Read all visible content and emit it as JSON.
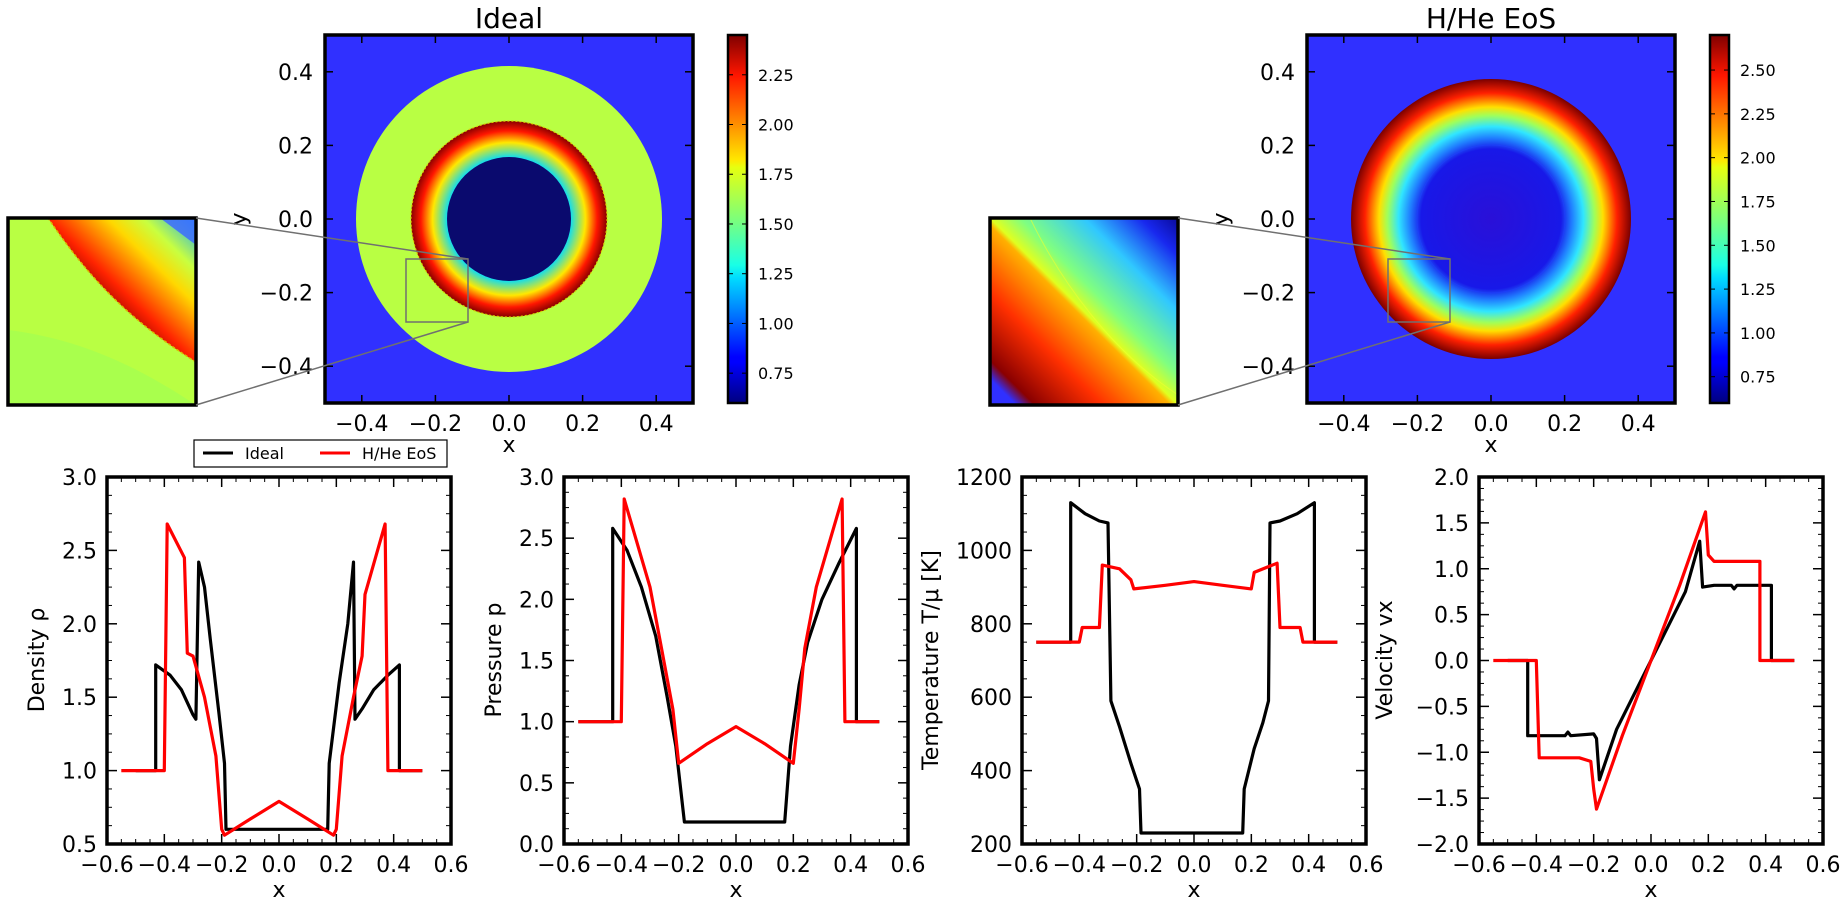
{
  "chart_data": [
    {
      "type": "heatmap",
      "title": "Ideal",
      "xlabel": "x",
      "ylabel": "y",
      "xlim": [
        -0.5,
        0.5
      ],
      "ylim": [
        -0.5,
        0.5
      ],
      "xticks": [
        "−0.4",
        "−0.2",
        "0.0",
        "0.2",
        "0.4"
      ],
      "yticks": [
        "0.4",
        "0.2",
        "0.0",
        "−0.2",
        "−0.4"
      ],
      "colorbar": {
        "range": [
          0.6,
          2.45
        ],
        "ticks": [
          "2.25",
          "2.00",
          "1.75",
          "1.50",
          "1.25",
          "1.00",
          "0.75"
        ]
      },
      "inset_region": {
        "x": [
          -0.28,
          -0.11
        ],
        "y": [
          -0.28,
          -0.11
        ]
      }
    },
    {
      "type": "heatmap",
      "title": "H/He EoS",
      "xlabel": "x",
      "ylabel": "y",
      "xlim": [
        -0.5,
        0.5
      ],
      "ylim": [
        -0.5,
        0.5
      ],
      "xticks": [
        "−0.4",
        "−0.2",
        "0.0",
        "0.2",
        "0.4"
      ],
      "yticks": [
        "0.4",
        "0.2",
        "0.0",
        "−0.2",
        "−0.4"
      ],
      "colorbar": {
        "range": [
          0.6,
          2.7
        ],
        "ticks": [
          "2.50",
          "2.25",
          "2.00",
          "1.75",
          "1.50",
          "1.25",
          "1.00",
          "0.75"
        ]
      },
      "inset_region": {
        "x": [
          -0.28,
          -0.11
        ],
        "y": [
          -0.28,
          -0.11
        ]
      }
    },
    {
      "type": "line",
      "xlabel": "x",
      "ylabel": "Density ρ",
      "xlim": [
        -0.6,
        0.6
      ],
      "ylim": [
        0.5,
        3.0
      ],
      "xticks": [
        "−0.6",
        "−0.4",
        "−0.2",
        "0.0",
        "0.2",
        "0.4",
        "0.6"
      ],
      "yticks": [
        "0.5",
        "1.0",
        "1.5",
        "2.0",
        "2.5",
        "3.0"
      ],
      "legend": {
        "placement": "top",
        "entries": [
          "Ideal",
          "H/He EoS"
        ]
      },
      "series": [
        {
          "name": "Ideal",
          "color": "#000000",
          "points": [
            [
              -0.5,
              1.0
            ],
            [
              -0.43,
              1.0
            ],
            [
              -0.43,
              1.72
            ],
            [
              -0.38,
              1.65
            ],
            [
              -0.34,
              1.55
            ],
            [
              -0.3,
              1.38
            ],
            [
              -0.29,
              1.35
            ],
            [
              -0.28,
              2.42
            ],
            [
              -0.26,
              2.25
            ],
            [
              -0.24,
              1.9
            ],
            [
              -0.21,
              1.4
            ],
            [
              -0.19,
              1.05
            ],
            [
              -0.185,
              0.6
            ],
            [
              -0.1,
              0.6
            ],
            [
              0.0,
              0.6
            ],
            [
              0.1,
              0.6
            ],
            [
              0.17,
              0.6
            ],
            [
              0.175,
              1.05
            ],
            [
              0.21,
              1.6
            ],
            [
              0.24,
              2.0
            ],
            [
              0.26,
              2.42
            ],
            [
              0.265,
              1.35
            ],
            [
              0.29,
              1.42
            ],
            [
              0.33,
              1.55
            ],
            [
              0.38,
              1.65
            ],
            [
              0.42,
              1.72
            ],
            [
              0.42,
              1.0
            ],
            [
              0.5,
              1.0
            ]
          ]
        },
        {
          "name": "H/He EoS",
          "color": "#ff0000",
          "points": [
            [
              -0.55,
              1.0
            ],
            [
              -0.4,
              1.0
            ],
            [
              -0.39,
              2.68
            ],
            [
              -0.33,
              2.45
            ],
            [
              -0.32,
              1.8
            ],
            [
              -0.3,
              1.78
            ],
            [
              -0.26,
              1.5
            ],
            [
              -0.22,
              1.1
            ],
            [
              -0.2,
              0.6
            ],
            [
              -0.19,
              0.56
            ],
            [
              -0.1,
              0.67
            ],
            [
              0.0,
              0.79
            ],
            [
              0.1,
              0.67
            ],
            [
              0.19,
              0.56
            ],
            [
              0.2,
              0.6
            ],
            [
              0.22,
              1.1
            ],
            [
              0.26,
              1.5
            ],
            [
              0.29,
              1.78
            ],
            [
              0.3,
              2.2
            ],
            [
              0.37,
              2.68
            ],
            [
              0.38,
              1.0
            ],
            [
              0.5,
              1.0
            ]
          ]
        }
      ]
    },
    {
      "type": "line",
      "xlabel": "x",
      "ylabel": "Pressure p",
      "xlim": [
        -0.6,
        0.6
      ],
      "ylim": [
        0.0,
        3.0
      ],
      "xticks": [
        "−0.6",
        "−0.4",
        "−0.2",
        "0.0",
        "0.2",
        "0.4",
        "0.6"
      ],
      "yticks": [
        "0.0",
        "0.5",
        "1.0",
        "1.5",
        "2.0",
        "2.5",
        "3.0"
      ],
      "series": [
        {
          "name": "Ideal",
          "color": "#000000",
          "points": [
            [
              -0.55,
              1.0
            ],
            [
              -0.43,
              1.0
            ],
            [
              -0.43,
              2.58
            ],
            [
              -0.38,
              2.4
            ],
            [
              -0.33,
              2.1
            ],
            [
              -0.28,
              1.7
            ],
            [
              -0.24,
              1.2
            ],
            [
              -0.21,
              0.8
            ],
            [
              -0.18,
              0.18
            ],
            [
              0.0,
              0.18
            ],
            [
              0.17,
              0.18
            ],
            [
              0.19,
              0.8
            ],
            [
              0.22,
              1.3
            ],
            [
              0.25,
              1.65
            ],
            [
              0.3,
              2.0
            ],
            [
              0.36,
              2.3
            ],
            [
              0.42,
              2.58
            ],
            [
              0.42,
              1.0
            ],
            [
              0.5,
              1.0
            ]
          ]
        },
        {
          "name": "H/He EoS",
          "color": "#ff0000",
          "points": [
            [
              -0.55,
              1.0
            ],
            [
              -0.4,
              1.0
            ],
            [
              -0.39,
              2.82
            ],
            [
              -0.35,
              2.5
            ],
            [
              -0.3,
              2.1
            ],
            [
              -0.26,
              1.6
            ],
            [
              -0.22,
              1.1
            ],
            [
              -0.2,
              0.66
            ],
            [
              -0.1,
              0.82
            ],
            [
              0.0,
              0.96
            ],
            [
              0.1,
              0.82
            ],
            [
              0.2,
              0.66
            ],
            [
              0.22,
              1.1
            ],
            [
              0.24,
              1.6
            ],
            [
              0.28,
              2.1
            ],
            [
              0.33,
              2.5
            ],
            [
              0.37,
              2.82
            ],
            [
              0.38,
              1.0
            ],
            [
              0.5,
              1.0
            ]
          ]
        }
      ]
    },
    {
      "type": "line",
      "xlabel": "x",
      "ylabel": "Temperature T/μ [K]",
      "xlim": [
        -0.6,
        0.6
      ],
      "ylim": [
        200,
        1200
      ],
      "xticks": [
        "−0.6",
        "−0.4",
        "−0.2",
        "0.0",
        "0.2",
        "0.4",
        "0.6"
      ],
      "yticks": [
        "200",
        "400",
        "600",
        "800",
        "1000",
        "1200"
      ],
      "series": [
        {
          "name": "Ideal",
          "color": "#000000",
          "points": [
            [
              -0.55,
              750
            ],
            [
              -0.43,
              750
            ],
            [
              -0.43,
              1130
            ],
            [
              -0.38,
              1100
            ],
            [
              -0.33,
              1080
            ],
            [
              -0.3,
              1075
            ],
            [
              -0.29,
              590
            ],
            [
              -0.26,
              520
            ],
            [
              -0.22,
              420
            ],
            [
              -0.19,
              350
            ],
            [
              -0.185,
              230
            ],
            [
              0.0,
              230
            ],
            [
              0.17,
              230
            ],
            [
              0.175,
              350
            ],
            [
              0.21,
              460
            ],
            [
              0.24,
              530
            ],
            [
              0.26,
              590
            ],
            [
              0.265,
              1075
            ],
            [
              0.3,
              1080
            ],
            [
              0.36,
              1100
            ],
            [
              0.42,
              1130
            ],
            [
              0.42,
              750
            ],
            [
              0.5,
              750
            ]
          ]
        },
        {
          "name": "H/He EoS",
          "color": "#ff0000",
          "points": [
            [
              -0.55,
              750
            ],
            [
              -0.4,
              750
            ],
            [
              -0.39,
              790
            ],
            [
              -0.33,
              790
            ],
            [
              -0.32,
              960
            ],
            [
              -0.26,
              950
            ],
            [
              -0.22,
              920
            ],
            [
              -0.21,
              895
            ],
            [
              -0.1,
              905
            ],
            [
              0.0,
              915
            ],
            [
              0.1,
              905
            ],
            [
              0.2,
              895
            ],
            [
              0.21,
              940
            ],
            [
              0.29,
              965
            ],
            [
              0.3,
              790
            ],
            [
              0.37,
              790
            ],
            [
              0.38,
              750
            ],
            [
              0.5,
              750
            ]
          ]
        }
      ]
    },
    {
      "type": "line",
      "xlabel": "x",
      "ylabel": "Velocity vx",
      "xlim": [
        -0.6,
        0.6
      ],
      "ylim": [
        -2.0,
        2.0
      ],
      "xticks": [
        "−0.6",
        "−0.4",
        "−0.2",
        "0.0",
        "0.2",
        "0.4",
        "0.6"
      ],
      "yticks": [
        "−2.0",
        "−1.5",
        "−1.0",
        "−0.5",
        "0.0",
        "0.5",
        "1.0",
        "1.5",
        "2.0"
      ],
      "series": [
        {
          "name": "Ideal",
          "color": "#000000",
          "points": [
            [
              -0.5,
              0.0
            ],
            [
              -0.43,
              0.0
            ],
            [
              -0.43,
              -0.82
            ],
            [
              -0.3,
              -0.82
            ],
            [
              -0.29,
              -0.78
            ],
            [
              -0.28,
              -0.82
            ],
            [
              -0.2,
              -0.8
            ],
            [
              -0.19,
              -0.85
            ],
            [
              -0.18,
              -1.3
            ],
            [
              -0.12,
              -0.75
            ],
            [
              0.0,
              0.0
            ],
            [
              0.12,
              0.75
            ],
            [
              0.17,
              1.3
            ],
            [
              0.18,
              0.8
            ],
            [
              0.22,
              0.82
            ],
            [
              0.28,
              0.82
            ],
            [
              0.29,
              0.78
            ],
            [
              0.3,
              0.82
            ],
            [
              0.42,
              0.82
            ],
            [
              0.42,
              0.0
            ],
            [
              0.5,
              0.0
            ]
          ]
        },
        {
          "name": "H/He EoS",
          "color": "#ff0000",
          "points": [
            [
              -0.55,
              0.0
            ],
            [
              -0.4,
              0.0
            ],
            [
              -0.39,
              -1.06
            ],
            [
              -0.25,
              -1.06
            ],
            [
              -0.21,
              -1.1
            ],
            [
              -0.2,
              -1.4
            ],
            [
              -0.19,
              -1.62
            ],
            [
              -0.1,
              -0.82
            ],
            [
              0.0,
              0.0
            ],
            [
              0.1,
              0.82
            ],
            [
              0.19,
              1.62
            ],
            [
              0.2,
              1.15
            ],
            [
              0.22,
              1.08
            ],
            [
              0.38,
              1.08
            ],
            [
              0.38,
              0.0
            ],
            [
              0.5,
              0.0
            ]
          ]
        }
      ]
    }
  ]
}
